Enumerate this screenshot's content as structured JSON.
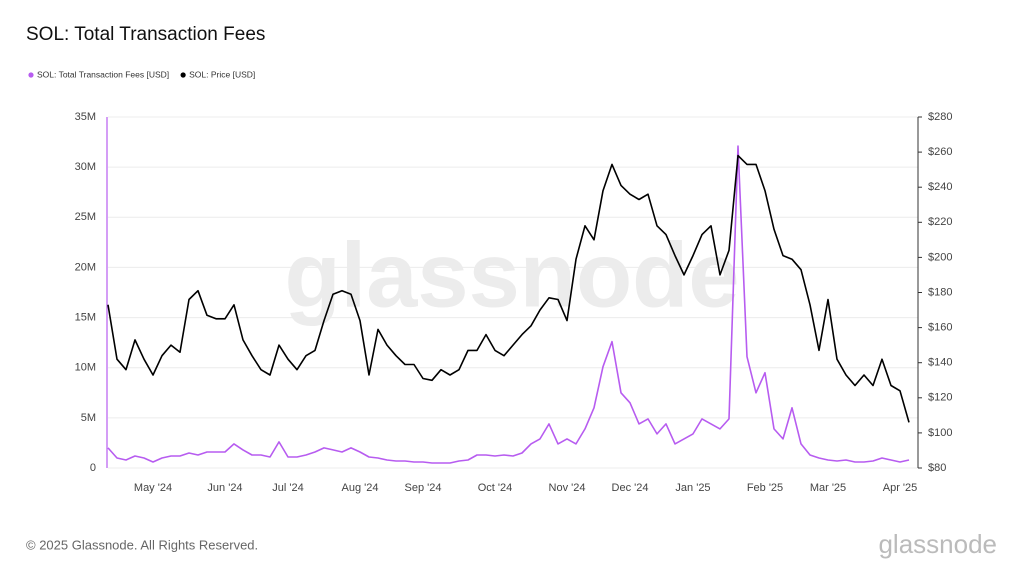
{
  "chart_data": {
    "type": "line",
    "title": "SOL: Total Transaction Fees",
    "x": [
      null,
      null,
      null,
      null,
      null,
      "May '24",
      null,
      null,
      null,
      null,
      null,
      null,
      null,
      "Jun '24",
      null,
      null,
      null,
      null,
      null,
      null,
      "Jul '24",
      null,
      null,
      null,
      null,
      null,
      null,
      null,
      "Aug '24",
      null,
      null,
      null,
      null,
      null,
      null,
      "Sep '24",
      null,
      null,
      null,
      null,
      null,
      null,
      null,
      "Oct '24",
      null,
      null,
      null,
      null,
      null,
      null,
      null,
      "Nov '24",
      null,
      null,
      null,
      null,
      null,
      null,
      "Dec '24",
      null,
      null,
      null,
      null,
      null,
      null,
      "Jan '25",
      null,
      null,
      null,
      null,
      null,
      null,
      null,
      "Feb '25",
      null,
      null,
      null,
      null,
      null,
      null,
      "Mar '25",
      null,
      null,
      null,
      null,
      null,
      null,
      null,
      "Apr '25",
      null
    ],
    "series": [
      {
        "name": "SOL: Total Transaction Fees [USD]",
        "color": "#b75cf0",
        "axis": "y",
        "values": [
          2000000,
          1000000,
          800000,
          1200000,
          1000000,
          600000,
          1000000,
          1200000,
          1200000,
          1500000,
          1300000,
          1600000,
          1600000,
          1600000,
          2400000,
          1800000,
          1300000,
          1300000,
          1100000,
          2600000,
          1100000,
          1100000,
          1300000,
          1600000,
          2000000,
          1800000,
          1600000,
          2000000,
          1600000,
          1100000,
          1000000,
          800000,
          700000,
          700000,
          600000,
          600000,
          500000,
          500000,
          500000,
          700000,
          800000,
          1300000,
          1300000,
          1200000,
          1300000,
          1200000,
          1500000,
          2400000,
          2900000,
          4400000,
          2400000,
          2900000,
          2400000,
          3900000,
          6000000,
          10100000,
          12600000,
          7500000,
          6500000,
          4400000,
          4900000,
          3400000,
          4400000,
          2400000,
          2900000,
          3400000,
          4900000,
          4400000,
          3900000,
          4900000,
          32100000,
          11100000,
          7500000,
          9500000,
          3900000,
          2900000,
          6000000,
          2400000,
          1300000,
          1000000,
          800000,
          700000,
          800000,
          600000,
          600000,
          700000,
          1000000,
          800000,
          600000,
          800000
        ]
      },
      {
        "name": "SOL: Price [USD]",
        "color": "#000000",
        "axis": "y2",
        "values": [
          173,
          142,
          136,
          153,
          142,
          133,
          144,
          150,
          146,
          176,
          181,
          167,
          165,
          165,
          173,
          153,
          144,
          136,
          133,
          150,
          142,
          136,
          144,
          147,
          164,
          179,
          181,
          179,
          164,
          133,
          159,
          150,
          144,
          139,
          139,
          131,
          130,
          136,
          133,
          136,
          147,
          147,
          156,
          147,
          144,
          150,
          156,
          161,
          170,
          177,
          176,
          164,
          199,
          218,
          210,
          238,
          253,
          241,
          236,
          233,
          236,
          218,
          213,
          201,
          190,
          201,
          213,
          218,
          190,
          204,
          258,
          253,
          253,
          238,
          216,
          201,
          199,
          193,
          173,
          147,
          176,
          142,
          133,
          127,
          133,
          127,
          142,
          127,
          124,
          106
        ]
      }
    ],
    "ylim": [
      0,
      35000000
    ],
    "yticks": [
      0,
      {
        "value": 5000000,
        "label": "5M"
      },
      {
        "value": 10000000,
        "label": "10M"
      },
      {
        "value": 15000000,
        "label": "15M"
      },
      {
        "value": 20000000,
        "label": "20M"
      },
      {
        "value": 25000000,
        "label": "25M"
      },
      {
        "value": 30000000,
        "label": "30M"
      },
      {
        "value": 35000000,
        "label": "35M"
      }
    ],
    "y2lim": [
      80,
      280
    ],
    "y2ticks": [
      {
        "value": 80,
        "label": "$80"
      },
      {
        "value": 100,
        "label": "$100"
      },
      {
        "value": 120,
        "label": "$120"
      },
      {
        "value": 140,
        "label": "$140"
      },
      {
        "value": 160,
        "label": "$160"
      },
      {
        "value": 180,
        "label": "$180"
      },
      {
        "value": 200,
        "label": "$200"
      },
      {
        "value": 220,
        "label": "$220"
      },
      {
        "value": 240,
        "label": "$240"
      },
      {
        "value": 260,
        "label": "$260"
      },
      {
        "value": 280,
        "label": "$280"
      }
    ],
    "grid": true,
    "legend": "top-left"
  },
  "watermark": "glassnode",
  "footer": {
    "copyright": "© 2025 Glassnode. All Rights Reserved.",
    "logo": "glassnode"
  }
}
